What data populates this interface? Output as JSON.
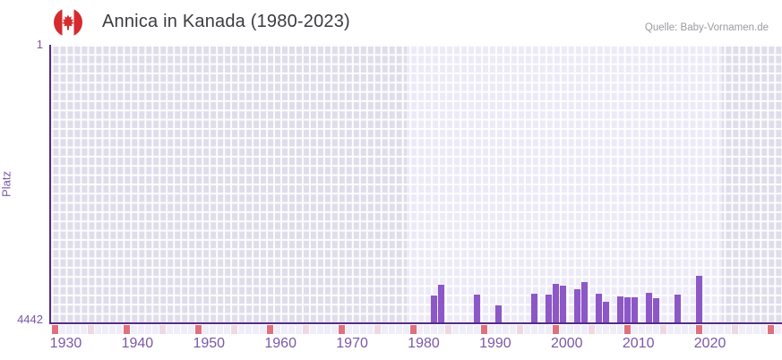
{
  "header": {
    "title": "Annica in Kanada (1980-2023)",
    "source": "Quelle: Baby-Vornamen.de",
    "flag_icon": "canada-flag"
  },
  "chart_data": {
    "type": "bar",
    "title": "Annica in Kanada (1980-2023)",
    "xlabel": "",
    "ylabel": "Platz",
    "y_axis": {
      "min": 1,
      "max": 4442,
      "inverted": true,
      "top_tick": "1",
      "bottom_tick": "4442"
    },
    "x_axis": {
      "start_year": 1928,
      "end_year": 2029,
      "tick_years": [
        1930,
        1940,
        1950,
        1960,
        1970,
        1980,
        1990,
        2000,
        2010,
        2020
      ]
    },
    "highlight_band": {
      "from_year": 1977.6,
      "to_year": 2021.7
    },
    "grid": true,
    "legend": false,
    "points": [
      {
        "year": 1981,
        "rank": 4010
      },
      {
        "year": 1982,
        "rank": 3840
      },
      {
        "year": 1987,
        "rank": 3995
      },
      {
        "year": 1990,
        "rank": 4175
      },
      {
        "year": 1995,
        "rank": 3980
      },
      {
        "year": 1997,
        "rank": 3995
      },
      {
        "year": 1998,
        "rank": 3820
      },
      {
        "year": 1999,
        "rank": 3860
      },
      {
        "year": 2001,
        "rank": 3910
      },
      {
        "year": 2002,
        "rank": 3800
      },
      {
        "year": 2004,
        "rank": 3980
      },
      {
        "year": 2005,
        "rank": 4110
      },
      {
        "year": 2007,
        "rank": 4020
      },
      {
        "year": 2008,
        "rank": 4045
      },
      {
        "year": 2009,
        "rank": 4035
      },
      {
        "year": 2011,
        "rank": 3965
      },
      {
        "year": 2012,
        "rank": 4060
      },
      {
        "year": 2015,
        "rank": 3995
      },
      {
        "year": 2018,
        "rank": 3700
      }
    ],
    "axis_strip": {
      "red_years": [
        1928,
        1938,
        1948,
        1958,
        1968,
        1978,
        1988,
        1998,
        2008,
        2018,
        2028
      ],
      "pink_years": [
        1933,
        1943,
        1953,
        1963,
        1973,
        1983,
        1993,
        2003,
        2013,
        2023
      ]
    }
  },
  "colors": {
    "bar": "#8c57c7",
    "axis_line": "#532c85",
    "tick_label": "#7b57a8",
    "title_text": "#3b3b40",
    "source_text": "#9a9aa0",
    "cell_light": "#edeaf8",
    "cell_dim": "#e0ddeb",
    "strip_base": "#efedf8",
    "strip_red": "#df707c",
    "strip_pink": "#eed8e1",
    "flag_red": "#d52b2e"
  }
}
